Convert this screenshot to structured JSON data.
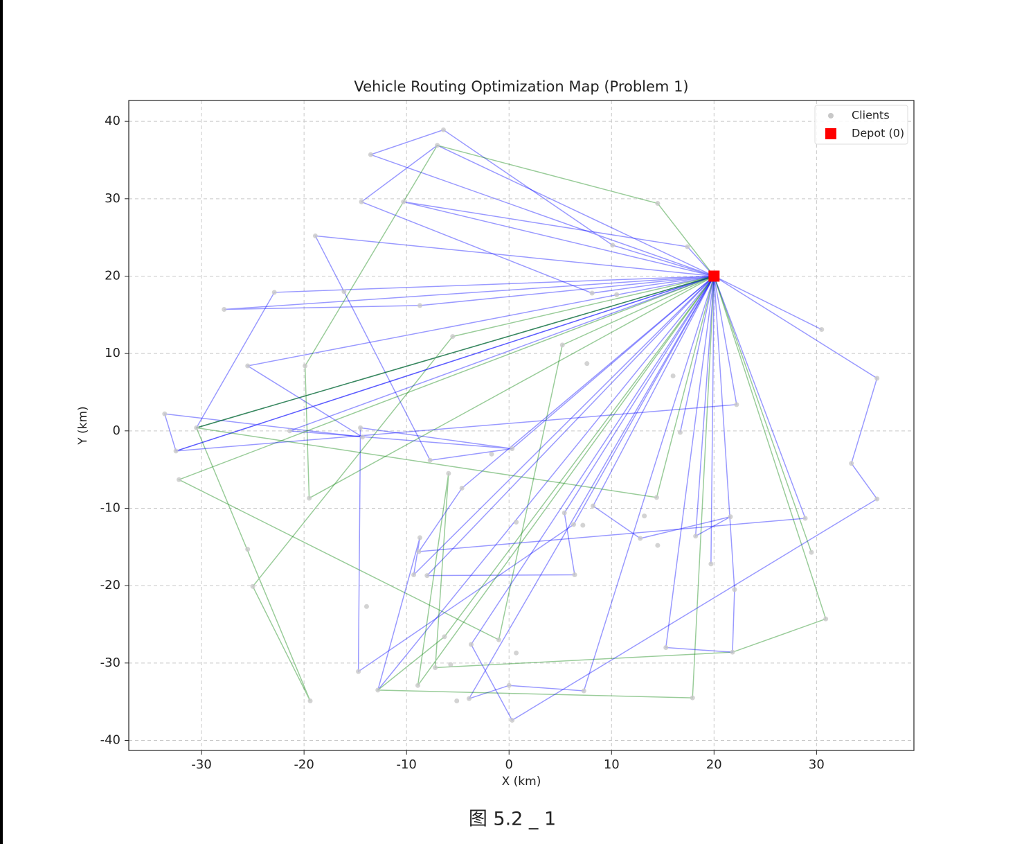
{
  "chart_data": {
    "type": "route-map",
    "title": "Vehicle Routing Optimization Map (Problem 1)",
    "x_label": "X (km)",
    "y_label": "Y (km)",
    "caption": "图 5.2 _ 1",
    "xlim": [
      -37.1,
      39.5
    ],
    "ylim": [
      -41.3,
      42.7
    ],
    "xticks": [
      -30,
      -20,
      -10,
      0,
      10,
      20,
      30
    ],
    "yticks": [
      -40,
      -30,
      -20,
      -10,
      0,
      10,
      20,
      30,
      40
    ],
    "grid": true,
    "legend": "upper right",
    "series": [
      {
        "name": "Clients",
        "color": "#c8c8c8",
        "x": [
          -6.4,
          -7.0,
          -13.5,
          -14.4,
          -10.3,
          14.5,
          -18.9,
          10.1,
          17.4,
          -22.9,
          -16.1,
          -27.8,
          -8.7,
          8.1,
          10.5,
          30.5,
          -5.5,
          -25.5,
          -19.9,
          5.2,
          7.6,
          35.9,
          16.0,
          22.2,
          -33.6,
          -30.5,
          -21.4,
          -14.5,
          -14.3,
          16.7,
          -32.5,
          -7.7,
          -1.7,
          0.3,
          33.4,
          -32.2,
          -5.9,
          -4.6,
          -19.5,
          14.4,
          35.9,
          8.2,
          5.4,
          13.2,
          21.6,
          28.9,
          0.7,
          6.3,
          7.2,
          -8.7,
          18.2,
          12.8,
          14.5,
          -25.5,
          -8.8,
          29.5,
          19.7,
          -9.3,
          -8.0,
          6.4,
          22.0,
          -25.0,
          -13.9,
          30.9,
          -6.3,
          -1.0,
          -3.7,
          15.3,
          0.7,
          21.8,
          -5.7,
          -14.7,
          -7.2,
          -8.9,
          -12.8,
          0,
          7.3,
          -3.9,
          17.9,
          -19.4,
          -5.1,
          0.3
        ],
        "y": [
          38.9,
          36.9,
          35.7,
          29.6,
          29.6,
          29.4,
          25.2,
          24.0,
          23.8,
          17.9,
          18.0,
          15.7,
          16.2,
          17.8,
          17.6,
          13.1,
          12.2,
          8.4,
          8.4,
          11.1,
          8.7,
          6.8,
          7.1,
          3.4,
          2.2,
          0.4,
          0.0,
          0.4,
          -0.8,
          -0.2,
          -2.6,
          -3.8,
          -3.0,
          -2.3,
          -4.2,
          -6.3,
          -5.5,
          -7.4,
          -8.7,
          -8.6,
          -8.8,
          -9.7,
          -10.6,
          -11.0,
          -11.1,
          -11.3,
          -11.8,
          -12.1,
          -12.2,
          -13.8,
          -13.6,
          -13.9,
          -14.8,
          -15.3,
          -15.6,
          -15.7,
          -17.2,
          -18.6,
          -18.7,
          -18.6,
          -20.5,
          -20.1,
          -22.7,
          -24.3,
          -26.6,
          -27.0,
          -27.6,
          -28.0,
          -28.7,
          -28.6,
          -30.2,
          -31.1,
          -30.6,
          -32.9,
          -33.5,
          -32.9,
          -33.6,
          -34.6,
          -34.5,
          -34.9,
          -34.9,
          -37.4
        ]
      },
      {
        "name": "Depot (0)",
        "color": "#ff0000",
        "x": [
          20
        ],
        "y": [
          20
        ]
      }
    ],
    "routes": [
      {
        "color": "#0000ff",
        "x": [
          20,
          -13.5,
          -6.4,
          10.1,
          20
        ],
        "y": [
          20,
          35.7,
          38.9,
          24.0,
          20
        ]
      },
      {
        "color": "#0000ff",
        "x": [
          20,
          -7.0,
          -14.4,
          8.1,
          20
        ],
        "y": [
          20,
          36.9,
          29.6,
          17.8,
          20
        ]
      },
      {
        "color": "#0000ff",
        "x": [
          20,
          -10.3,
          17.4,
          20
        ],
        "y": [
          20,
          29.6,
          23.8,
          20
        ]
      },
      {
        "color": "#0000ff",
        "x": [
          20,
          -18.9,
          -16.1,
          -7.7,
          0.3,
          20
        ],
        "y": [
          20,
          25.2,
          18.0,
          -3.8,
          -2.3,
          20
        ]
      },
      {
        "color": "#0000ff",
        "x": [
          20,
          -22.9,
          -30.5,
          20
        ],
        "y": [
          20,
          17.9,
          0.4,
          20
        ]
      },
      {
        "color": "#0000ff",
        "x": [
          20,
          -27.8,
          -8.7,
          20
        ],
        "y": [
          20,
          15.7,
          16.2,
          20
        ]
      },
      {
        "color": "#0000ff",
        "x": [
          20,
          -25.5,
          -14.3,
          -33.6,
          -32.5,
          20
        ],
        "y": [
          20,
          8.4,
          -0.8,
          2.2,
          -2.6,
          20
        ]
      },
      {
        "color": "#008000",
        "x": [
          20,
          14.5,
          -7.0,
          -19.9,
          -19.5,
          20
        ],
        "y": [
          20,
          29.4,
          36.9,
          8.4,
          -8.7,
          20
        ]
      },
      {
        "color": "#0000ff",
        "x": [
          20,
          -21.4,
          0.3,
          -14.5,
          -14.7,
          6.3,
          20
        ],
        "y": [
          20,
          0.0,
          -2.3,
          0.4,
          -31.1,
          -12.1,
          20
        ]
      },
      {
        "color": "#008000",
        "x": [
          20,
          -32.2,
          -1.0,
          5.2,
          20
        ],
        "y": [
          20,
          -6.3,
          -27.0,
          11.1,
          20
        ]
      },
      {
        "color": "#008000",
        "x": [
          20,
          -30.5,
          -19.4,
          -25.0,
          -5.5,
          20
        ],
        "y": [
          20,
          0.4,
          -34.9,
          -20.1,
          12.2,
          20
        ]
      },
      {
        "color": "#0000ff",
        "x": [
          20,
          -9.3,
          -8.7,
          -12.8,
          20
        ],
        "y": [
          20,
          -18.6,
          -13.8,
          -33.5,
          20
        ]
      },
      {
        "color": "#0000ff",
        "x": [
          20,
          -8.0,
          6.4,
          5.4,
          20
        ],
        "y": [
          20,
          -18.7,
          -18.6,
          -10.6,
          20
        ]
      },
      {
        "color": "#008000",
        "x": [
          20,
          -8.9,
          -5.9,
          -7.2,
          21.8,
          30.9,
          20
        ],
        "y": [
          20,
          -32.9,
          -5.5,
          -30.6,
          -28.6,
          -24.3,
          20
        ]
      },
      {
        "color": "#0000ff",
        "x": [
          20,
          -3.9,
          0,
          7.3,
          20
        ],
        "y": [
          20,
          -34.6,
          -32.9,
          -33.6,
          20
        ]
      },
      {
        "color": "#008000",
        "x": [
          20,
          17.9,
          -12.8,
          -6.3,
          20
        ],
        "y": [
          20,
          -34.5,
          -33.5,
          -26.6,
          20
        ]
      },
      {
        "color": "#0000ff",
        "x": [
          20,
          15.3,
          21.8,
          22.0,
          20
        ],
        "y": [
          20,
          -28.0,
          -28.6,
          -20.5,
          20
        ]
      },
      {
        "color": "#0000ff",
        "x": [
          20,
          30.5,
          20
        ],
        "y": [
          20,
          13.1,
          20
        ]
      },
      {
        "color": "#0000ff",
        "x": [
          20,
          35.9,
          33.4,
          35.9,
          0.3,
          -3.7,
          20
        ],
        "y": [
          20,
          6.8,
          -4.2,
          -8.8,
          -37.4,
          -27.6,
          20
        ]
      },
      {
        "color": "#0000ff",
        "x": [
          20,
          19.7,
          20
        ],
        "y": [
          20,
          -17.2,
          20
        ]
      },
      {
        "color": "#0000ff",
        "x": [
          20,
          18.2,
          21.6,
          12.8,
          8.2,
          20
        ],
        "y": [
          20,
          -13.6,
          -11.1,
          -13.9,
          -9.7,
          20
        ]
      },
      {
        "color": "#008000",
        "x": [
          20,
          29.5,
          20
        ],
        "y": [
          20,
          -15.7,
          20
        ]
      },
      {
        "color": "#0000ff",
        "x": [
          20,
          28.9,
          -8.8,
          -4.6,
          20
        ],
        "y": [
          20,
          -11.3,
          -15.6,
          -7.4,
          20
        ]
      },
      {
        "color": "#0000ff",
        "x": [
          20,
          16.7,
          20
        ],
        "y": [
          20,
          -0.2,
          20
        ]
      },
      {
        "color": "#0000ff",
        "x": [
          20,
          22.2,
          -32.5,
          20
        ],
        "y": [
          20,
          3.4,
          -2.6,
          20
        ]
      },
      {
        "color": "#008000",
        "x": [
          20,
          14.4,
          -30.5,
          20
        ],
        "y": [
          20,
          -8.6,
          0.4,
          20
        ]
      }
    ]
  }
}
